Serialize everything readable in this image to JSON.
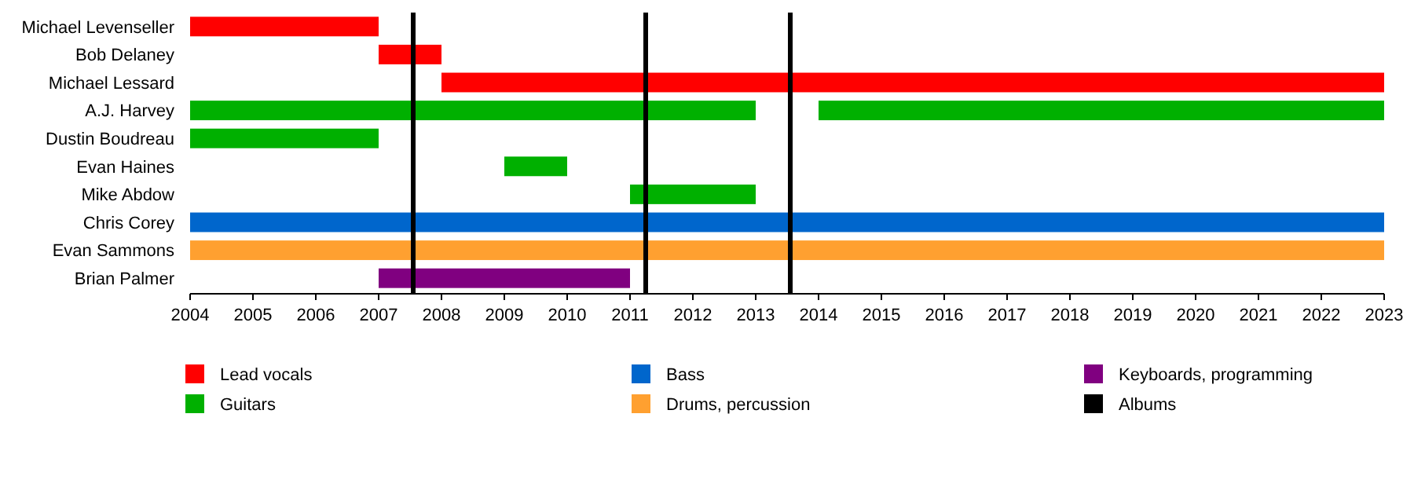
{
  "chart_data": {
    "type": "bar",
    "orientation": "horizontal",
    "categories": [
      "Michael Levenseller",
      "Bob Delaney",
      "Michael Lessard",
      "A.J. Harvey",
      "Dustin Boudreau",
      "Evan Haines",
      "Mike Abdow",
      "Chris Corey",
      "Evan Sammons",
      "Brian Palmer"
    ],
    "series": [
      {
        "name": "Lead vocals",
        "color": "#ff0000",
        "values": [
          3,
          1,
          15,
          null,
          null,
          null,
          null,
          null,
          null,
          null
        ],
        "base": [
          2004,
          2007,
          2008,
          null,
          null,
          null,
          null,
          null,
          null,
          null
        ]
      },
      {
        "name": "Guitars",
        "color": "#00b000",
        "values": [
          null,
          null,
          null,
          9,
          3,
          1,
          2,
          null,
          null,
          null
        ],
        "base": [
          null,
          null,
          null,
          2004,
          2004,
          2009,
          2011,
          null,
          null,
          null
        ]
      },
      {
        "color": "#00b000",
        "values": [
          null,
          null,
          null,
          9,
          null,
          null,
          null,
          null,
          null,
          null
        ],
        "base": [
          null,
          null,
          null,
          2014,
          null,
          null,
          null,
          null,
          null,
          null
        ]
      },
      {
        "name": "Bass",
        "color": "#0066cc",
        "values": [
          null,
          null,
          null,
          null,
          null,
          null,
          null,
          19,
          null,
          null
        ],
        "base": [
          null,
          null,
          null,
          null,
          null,
          null,
          null,
          2004,
          null,
          null
        ]
      },
      {
        "name": "Drums, percussion",
        "color": "#ffa030",
        "values": [
          null,
          null,
          null,
          null,
          null,
          null,
          null,
          null,
          19,
          null
        ],
        "base": [
          null,
          null,
          null,
          null,
          null,
          null,
          null,
          null,
          2004,
          null
        ]
      },
      {
        "name": "Keyboards, programming",
        "color": "#800080",
        "values": [
          null,
          null,
          null,
          null,
          null,
          null,
          null,
          null,
          null,
          4
        ],
        "base": [
          null,
          null,
          null,
          null,
          null,
          null,
          null,
          null,
          null,
          2007
        ]
      }
    ],
    "xlim": [
      2004,
      2023
    ],
    "xticks": [
      2004,
      2005,
      2006,
      2007,
      2008,
      2009,
      2010,
      2011,
      2012,
      2013,
      2014,
      2015,
      2016,
      2017,
      2018,
      2019,
      2020,
      2021,
      2022,
      2023
    ],
    "ref_lines": [
      {
        "axis": "x",
        "value": 2007.55,
        "label": "Albums",
        "color": "#000000"
      },
      {
        "axis": "x",
        "value": 2011.25,
        "color": "#000000"
      },
      {
        "axis": "x",
        "value": 2013.55,
        "color": "#000000"
      }
    ],
    "legend": "bottom"
  }
}
